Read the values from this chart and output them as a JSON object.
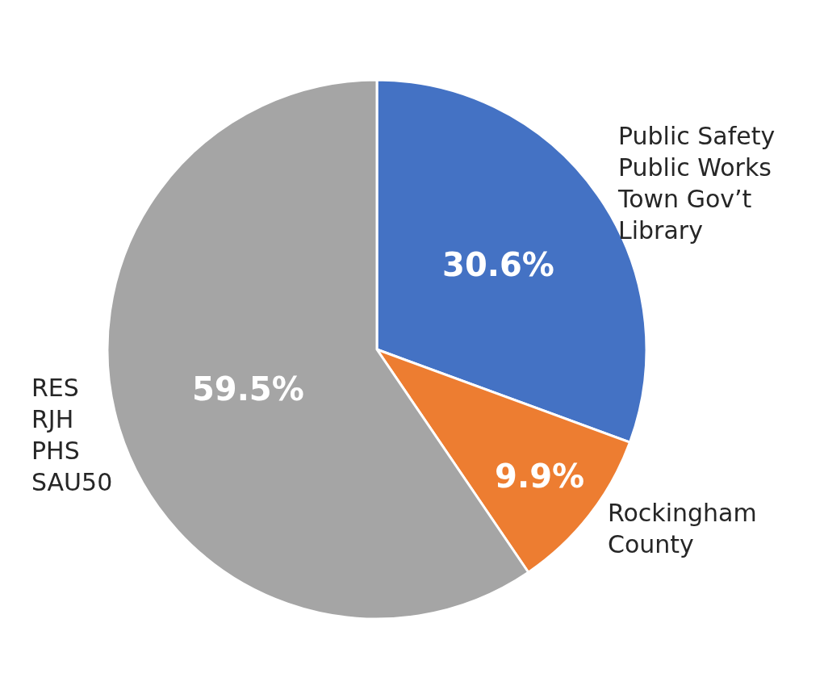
{
  "chart_data": {
    "type": "pie",
    "categories": [
      "Public Safety\nPublic Works\nTown Gov’t\nLibrary",
      "Rockingham\nCounty",
      "RES\nRJH\nPHS\nSAU50"
    ],
    "values": [
      30.6,
      9.9,
      59.5
    ],
    "colors": [
      "#4472c4",
      "#ed7d31",
      "#a5a5a5"
    ],
    "value_labels": [
      "30.6%",
      "9.9%",
      "59.5%"
    ],
    "legend": false
  }
}
